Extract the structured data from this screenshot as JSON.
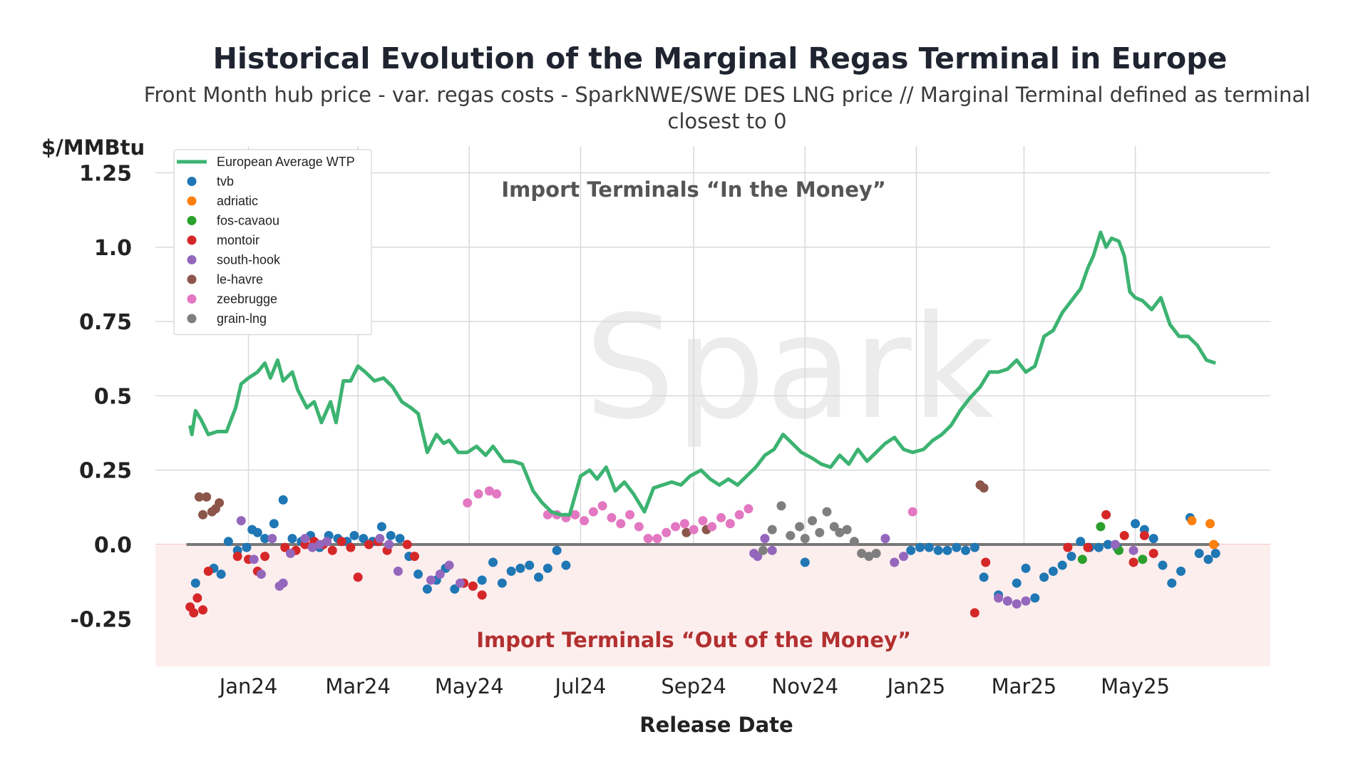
{
  "title": "Historical Evolution of the Marginal Regas Terminal in Europe",
  "subtitle": "Front Month hub price - var. regas costs - SparkNWE/SWE DES LNG price // Marginal Terminal defined as terminal closest to 0",
  "watermark": "Spark",
  "chart_data": {
    "type": "line",
    "ylabel": "$/MMBtu",
    "xlabel": "Release Date",
    "ylim": [
      -0.41,
      1.34
    ],
    "xlim": [
      "2023-11-11",
      "2025-07-14"
    ],
    "yticks": [
      -0.25,
      0,
      0.25,
      0.5,
      0.75,
      1.0,
      1.25
    ],
    "ytick_labels": [
      "-0.25",
      "0.0",
      "0.25",
      "0.5",
      "0.75",
      "1.0",
      "1.25"
    ],
    "xticks": [
      "2024-01-01",
      "2024-03-01",
      "2024-05-01",
      "2024-07-01",
      "2024-09-01",
      "2024-11-01",
      "2025-01-01",
      "2025-03-01",
      "2025-05-01"
    ],
    "xtick_labels": [
      "Jan24",
      "Mar24",
      "May24",
      "Jul24",
      "Sep24",
      "Nov24",
      "Jan25",
      "Mar25",
      "May25"
    ],
    "grid": true,
    "legend": "top-left",
    "zero_line_color": "#777777",
    "negative_region_color": "#fdeeee",
    "annotations": [
      {
        "text": "Import Terminals “In the Money”",
        "x": "2024-09-01",
        "y": 1.17,
        "color": "#555555"
      },
      {
        "text": "Import Terminals “Out of the Money”",
        "x": "2024-09-01",
        "y": -0.345,
        "color": "#b23030"
      }
    ],
    "wtp_series": {
      "name": "European Average WTP",
      "color": "#3cb371",
      "x": [
        "2023-11-30",
        "2023-12-01",
        "2023-12-03",
        "2023-12-06",
        "2023-12-10",
        "2023-12-15",
        "2023-12-20",
        "2023-12-25",
        "2023-12-28",
        "2024-01-01",
        "2024-01-06",
        "2024-01-10",
        "2024-01-13",
        "2024-01-17",
        "2024-01-20",
        "2024-01-25",
        "2024-01-28",
        "2024-02-02",
        "2024-02-06",
        "2024-02-10",
        "2024-02-15",
        "2024-02-18",
        "2024-02-22",
        "2024-02-26",
        "2024-03-01",
        "2024-03-05",
        "2024-03-10",
        "2024-03-15",
        "2024-03-20",
        "2024-03-25",
        "2024-03-30",
        "2024-04-03",
        "2024-04-08",
        "2024-04-13",
        "2024-04-17",
        "2024-04-20",
        "2024-04-25",
        "2024-04-30",
        "2024-05-05",
        "2024-05-10",
        "2024-05-14",
        "2024-05-20",
        "2024-05-25",
        "2024-05-30",
        "2024-06-05",
        "2024-06-10",
        "2024-06-15",
        "2024-06-20",
        "2024-06-25",
        "2024-07-01",
        "2024-07-06",
        "2024-07-10",
        "2024-07-15",
        "2024-07-20",
        "2024-07-25",
        "2024-07-30",
        "2024-08-05",
        "2024-08-10",
        "2024-08-15",
        "2024-08-20",
        "2024-08-25",
        "2024-08-30",
        "2024-09-05",
        "2024-09-10",
        "2024-09-15",
        "2024-09-20",
        "2024-09-25",
        "2024-09-30",
        "2024-10-05",
        "2024-10-10",
        "2024-10-15",
        "2024-10-20",
        "2024-10-25",
        "2024-10-30",
        "2024-11-05",
        "2024-11-10",
        "2024-11-15",
        "2024-11-20",
        "2024-11-25",
        "2024-11-30",
        "2024-12-05",
        "2024-12-10",
        "2024-12-15",
        "2024-12-20",
        "2024-12-25",
        "2024-12-30",
        "2025-01-05",
        "2025-01-10",
        "2025-01-15",
        "2025-01-20",
        "2025-01-25",
        "2025-01-30",
        "2025-02-05",
        "2025-02-10",
        "2025-02-15",
        "2025-02-20",
        "2025-02-25",
        "2025-03-02",
        "2025-03-07",
        "2025-03-12",
        "2025-03-17",
        "2025-03-22",
        "2025-03-27",
        "2025-04-01",
        "2025-04-05",
        "2025-04-08",
        "2025-04-12",
        "2025-04-15",
        "2025-04-18",
        "2025-04-22",
        "2025-04-25",
        "2025-04-28",
        "2025-05-01",
        "2025-05-05",
        "2025-05-10",
        "2025-05-15",
        "2025-05-20",
        "2025-05-25",
        "2025-05-30",
        "2025-06-04",
        "2025-06-09",
        "2025-06-14"
      ],
      "y": [
        0.4,
        0.37,
        0.45,
        0.42,
        0.37,
        0.38,
        0.38,
        0.46,
        0.54,
        0.56,
        0.58,
        0.61,
        0.56,
        0.62,
        0.55,
        0.58,
        0.52,
        0.46,
        0.48,
        0.41,
        0.48,
        0.41,
        0.55,
        0.55,
        0.6,
        0.58,
        0.55,
        0.56,
        0.53,
        0.48,
        0.46,
        0.44,
        0.31,
        0.37,
        0.34,
        0.35,
        0.31,
        0.31,
        0.33,
        0.3,
        0.33,
        0.28,
        0.28,
        0.27,
        0.18,
        0.14,
        0.11,
        0.1,
        0.1,
        0.23,
        0.25,
        0.22,
        0.26,
        0.18,
        0.21,
        0.17,
        0.11,
        0.19,
        0.2,
        0.21,
        0.2,
        0.23,
        0.25,
        0.22,
        0.2,
        0.22,
        0.2,
        0.23,
        0.26,
        0.3,
        0.32,
        0.37,
        0.34,
        0.31,
        0.29,
        0.27,
        0.26,
        0.3,
        0.27,
        0.32,
        0.28,
        0.31,
        0.34,
        0.36,
        0.32,
        0.31,
        0.32,
        0.35,
        0.37,
        0.4,
        0.45,
        0.49,
        0.53,
        0.58,
        0.58,
        0.59,
        0.62,
        0.58,
        0.6,
        0.7,
        0.72,
        0.78,
        0.82,
        0.86,
        0.93,
        0.97,
        1.05,
        1.0,
        1.03,
        1.02,
        0.97,
        0.85,
        0.83,
        0.82,
        0.79,
        0.83,
        0.74,
        0.7,
        0.7,
        0.67,
        0.62,
        0.61
      ]
    },
    "terminals": [
      {
        "name": "tvb",
        "color": "#1f77b4",
        "x": [
          "2023-12-03",
          "2023-12-13",
          "2023-12-17",
          "2023-12-21",
          "2023-12-26",
          "2023-12-31",
          "2024-01-03",
          "2024-01-06",
          "2024-01-10",
          "2024-01-15",
          "2024-01-20",
          "2024-01-25",
          "2024-01-30",
          "2024-02-04",
          "2024-02-09",
          "2024-02-14",
          "2024-02-19",
          "2024-02-24",
          "2024-02-28",
          "2024-03-04",
          "2024-03-09",
          "2024-03-14",
          "2024-03-19",
          "2024-03-24",
          "2024-03-29",
          "2024-04-03",
          "2024-04-08",
          "2024-04-13",
          "2024-04-18",
          "2024-04-23",
          "2024-04-28",
          "2024-05-03",
          "2024-05-08",
          "2024-05-14",
          "2024-05-19",
          "2024-05-24",
          "2024-05-29",
          "2024-06-03",
          "2024-06-08",
          "2024-06-13",
          "2024-06-18",
          "2024-06-23",
          "2024-11-01",
          "2024-12-29",
          "2025-01-03",
          "2025-01-08",
          "2025-01-13",
          "2025-01-18",
          "2025-01-23",
          "2025-01-28",
          "2025-02-02",
          "2025-02-07",
          "2025-02-15",
          "2025-02-20",
          "2025-02-25",
          "2025-03-02",
          "2025-03-07",
          "2025-03-12",
          "2025-03-17",
          "2025-03-22",
          "2025-03-27",
          "2025-04-01",
          "2025-04-06",
          "2025-04-11",
          "2025-04-16",
          "2025-04-21",
          "2025-05-01",
          "2025-05-06",
          "2025-05-11",
          "2025-05-16",
          "2025-05-21",
          "2025-05-26",
          "2025-05-31",
          "2025-06-05",
          "2025-06-10",
          "2025-06-14"
        ],
        "y": [
          -0.13,
          -0.08,
          -0.1,
          0.01,
          -0.02,
          -0.01,
          0.05,
          0.04,
          0.02,
          0.07,
          0.15,
          0.02,
          0.01,
          0.03,
          -0.01,
          0.03,
          0.02,
          0.01,
          0.03,
          0.02,
          0.01,
          0.06,
          0.03,
          0.02,
          -0.04,
          -0.1,
          -0.15,
          -0.12,
          -0.08,
          -0.15,
          -0.13,
          -0.14,
          -0.12,
          -0.06,
          -0.13,
          -0.09,
          -0.08,
          -0.07,
          -0.11,
          -0.08,
          -0.02,
          -0.07,
          -0.06,
          -0.02,
          -0.01,
          -0.01,
          -0.02,
          -0.02,
          -0.01,
          -0.02,
          -0.01,
          -0.11,
          -0.17,
          -0.19,
          -0.13,
          -0.08,
          -0.18,
          -0.11,
          -0.09,
          -0.07,
          -0.04,
          0.01,
          -0.01,
          -0.01,
          0.0,
          -0.01,
          0.07,
          0.05,
          0.02,
          -0.07,
          -0.13,
          -0.09,
          0.09,
          -0.03,
          -0.05,
          -0.03
        ]
      },
      {
        "name": "adriatic",
        "color": "#ff7f0e",
        "x": [
          "2025-06-01",
          "2025-06-11",
          "2025-06-13"
        ],
        "y": [
          0.08,
          0.07,
          0.0
        ]
      },
      {
        "name": "fos-cavaou",
        "color": "#2ca02c",
        "x": [
          "2025-04-02",
          "2025-04-12",
          "2025-04-22",
          "2025-05-05"
        ],
        "y": [
          -0.05,
          0.06,
          -0.02,
          -0.05
        ]
      },
      {
        "name": "montoir",
        "color": "#d62728",
        "x": [
          "2023-11-30",
          "2023-12-02",
          "2023-12-04",
          "2023-12-07",
          "2023-12-10",
          "2023-12-26",
          "2024-01-01",
          "2024-01-06",
          "2024-01-10",
          "2024-01-21",
          "2024-01-27",
          "2024-02-01",
          "2024-02-06",
          "2024-02-11",
          "2024-02-16",
          "2024-02-21",
          "2024-02-26",
          "2024-03-01",
          "2024-03-07",
          "2024-03-12",
          "2024-03-17",
          "2024-03-28",
          "2024-04-01",
          "2024-04-28",
          "2024-05-03",
          "2024-05-08",
          "2025-02-02",
          "2025-02-08",
          "2025-03-25",
          "2025-04-05",
          "2025-04-15",
          "2025-04-25",
          "2025-04-30",
          "2025-05-06",
          "2025-05-11"
        ],
        "y": [
          -0.21,
          -0.23,
          -0.18,
          -0.22,
          -0.09,
          -0.04,
          -0.05,
          -0.09,
          -0.04,
          -0.01,
          -0.02,
          0.0,
          0.01,
          0.0,
          -0.02,
          0.01,
          -0.01,
          -0.11,
          0.0,
          0.01,
          -0.02,
          0.0,
          -0.04,
          -0.13,
          -0.14,
          -0.17,
          -0.23,
          -0.06,
          -0.01,
          -0.01,
          0.1,
          0.03,
          -0.06,
          0.03,
          -0.03
        ]
      },
      {
        "name": "south-hook",
        "color": "#9467bd",
        "x": [
          "2023-12-28",
          "2024-01-04",
          "2024-01-08",
          "2024-01-14",
          "2024-01-18",
          "2024-01-20",
          "2024-01-24",
          "2024-02-01",
          "2024-02-05",
          "2024-02-09",
          "2024-02-13",
          "2024-03-13",
          "2024-03-18",
          "2024-03-23",
          "2024-04-10",
          "2024-04-15",
          "2024-04-20",
          "2024-04-26",
          "2024-10-04",
          "2024-10-06",
          "2024-10-10",
          "2024-10-14",
          "2024-12-15",
          "2024-12-20",
          "2024-12-25",
          "2025-02-15",
          "2025-02-20",
          "2025-02-25",
          "2025-03-02",
          "2025-04-20",
          "2025-04-30"
        ],
        "y": [
          0.08,
          -0.05,
          -0.1,
          0.02,
          -0.14,
          -0.13,
          -0.03,
          0.02,
          -0.01,
          0.0,
          0.01,
          0.02,
          0.0,
          -0.09,
          -0.12,
          -0.1,
          -0.07,
          -0.13,
          -0.03,
          -0.04,
          0.02,
          -0.02,
          0.02,
          -0.06,
          -0.04,
          -0.18,
          -0.19,
          -0.2,
          -0.19,
          0.0,
          -0.02
        ]
      },
      {
        "name": "le-havre",
        "color": "#8c564b",
        "x": [
          "2023-12-05",
          "2023-12-07",
          "2023-12-09",
          "2023-12-12",
          "2023-12-14",
          "2023-12-16",
          "2024-08-28",
          "2024-09-08",
          "2025-02-05",
          "2025-02-07"
        ],
        "y": [
          0.16,
          0.1,
          0.16,
          0.11,
          0.12,
          0.14,
          0.04,
          0.05,
          0.2,
          0.19
        ]
      },
      {
        "name": "zeebrugge",
        "color": "#e377c2",
        "x": [
          "2024-04-30",
          "2024-05-06",
          "2024-05-12",
          "2024-05-16",
          "2024-06-13",
          "2024-06-18",
          "2024-06-23",
          "2024-06-28",
          "2024-07-03",
          "2024-07-08",
          "2024-07-13",
          "2024-07-18",
          "2024-07-23",
          "2024-07-28",
          "2024-08-02",
          "2024-08-07",
          "2024-08-12",
          "2024-08-17",
          "2024-08-22",
          "2024-08-27",
          "2024-09-01",
          "2024-09-06",
          "2024-09-11",
          "2024-09-16",
          "2024-09-21",
          "2024-09-26",
          "2024-10-01",
          "2024-12-30"
        ],
        "y": [
          0.14,
          0.17,
          0.18,
          0.17,
          0.1,
          0.1,
          0.09,
          0.1,
          0.08,
          0.11,
          0.13,
          0.09,
          0.07,
          0.1,
          0.06,
          0.02,
          0.02,
          0.04,
          0.06,
          0.07,
          0.05,
          0.08,
          0.06,
          0.09,
          0.07,
          0.1,
          0.12,
          0.11
        ]
      },
      {
        "name": "grain-lng",
        "color": "#7f7f7f",
        "x": [
          "2024-10-09",
          "2024-10-14",
          "2024-10-19",
          "2024-10-24",
          "2024-10-29",
          "2024-11-01",
          "2024-11-05",
          "2024-11-09",
          "2024-11-13",
          "2024-11-17",
          "2024-11-20",
          "2024-11-24",
          "2024-11-28",
          "2024-12-02",
          "2024-12-06",
          "2024-12-10"
        ],
        "y": [
          -0.02,
          0.05,
          0.13,
          0.03,
          0.06,
          0.02,
          0.08,
          0.04,
          0.11,
          0.06,
          0.04,
          0.05,
          0.01,
          -0.03,
          -0.04,
          -0.03
        ]
      }
    ]
  }
}
